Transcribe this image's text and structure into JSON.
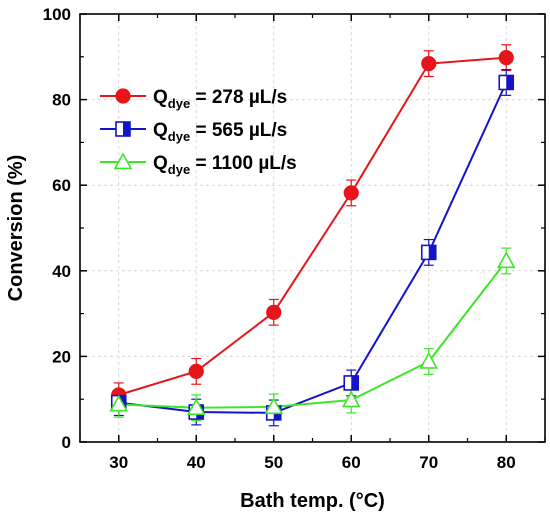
{
  "chart_data": {
    "type": "line",
    "title": "",
    "xlabel": "Bath temp. (°C)",
    "ylabel": "Conversion (%)",
    "x": [
      30,
      40,
      50,
      60,
      70,
      80
    ],
    "xlim": [
      25,
      85
    ],
    "ylim": [
      0,
      100
    ],
    "x_ticks": [
      "30",
      "40",
      "50",
      "60",
      "70",
      "80"
    ],
    "y_ticks": [
      "0",
      "20",
      "40",
      "60",
      "80",
      "100"
    ],
    "grid": true,
    "legend_position": "top-left",
    "series": [
      {
        "name_main": "Q",
        "name_sub": "dye",
        "name_rest": " = 278 µL/s",
        "color": "#e8141b",
        "marker": "filled-circle",
        "values": [
          11,
          16.5,
          30.3,
          58.2,
          88.4,
          89.8
        ],
        "errors": [
          2.8,
          3,
          3,
          3,
          3,
          3
        ]
      },
      {
        "name_main": "Q",
        "name_sub": "dye",
        "name_rest": " = 565 µL/s",
        "color": "#1414c8",
        "marker": "half-filled-square",
        "values": [
          9.2,
          7,
          6.8,
          13.8,
          44.3,
          84
        ],
        "errors": [
          3,
          3,
          3,
          3,
          3,
          3
        ]
      },
      {
        "name_main": "Q",
        "name_sub": "dye",
        "name_rest": " = 1100 µL/s",
        "color": "#3ee62a",
        "marker": "open-triangle",
        "values": [
          8.8,
          8,
          8.2,
          9.8,
          18.8,
          42.3
        ],
        "errors": [
          3,
          3,
          3,
          3,
          3,
          3
        ]
      }
    ]
  }
}
